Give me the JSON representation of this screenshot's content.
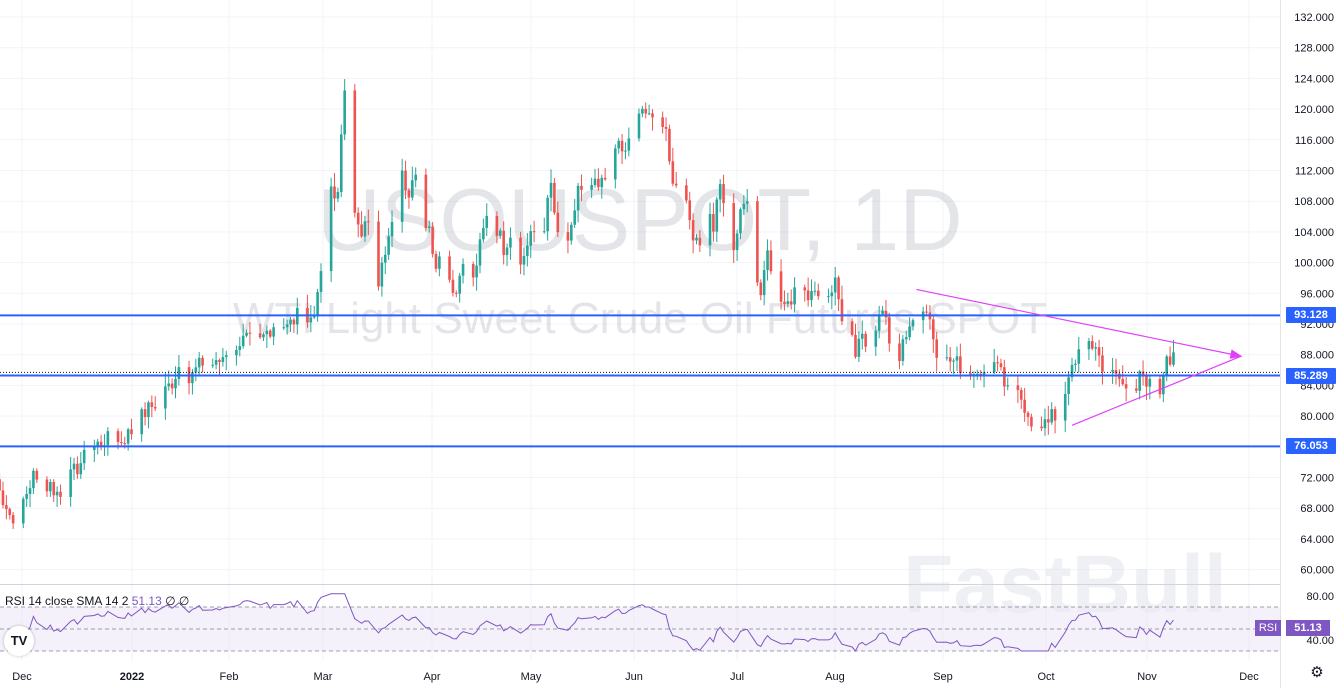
{
  "watermark": {
    "symbol": "USOUSPOT, 1D",
    "description": "WTI Light Sweet Crude Oil Futures SPOT",
    "brand": "FastBull"
  },
  "rsi_legend": {
    "label": "RSI 14 close SMA 14 2",
    "value": "51.13",
    "extra": "∅ ∅"
  },
  "rsi_tag": {
    "name": "RSI",
    "value": "51.13"
  },
  "price_tags": [
    "93.128",
    "85.289",
    "76.053"
  ],
  "colors": {
    "up": "#26a69a",
    "down": "#ef5350",
    "level": "#2962ff",
    "trend": "#e040fb",
    "rsi": "#7e57c2",
    "rsi_band": "#ede7f6"
  },
  "icons": {
    "logo": "tradingview-logo-icon",
    "settings": "gear-icon"
  },
  "chart_data": [
    {
      "type": "candlestick",
      "symbol": "USOUSPOT",
      "interval": "1D",
      "x_tick_labels": [
        "Dec",
        "2022",
        "Feb",
        "Mar",
        "Apr",
        "May",
        "Jun",
        "Jul",
        "Aug",
        "Sep",
        "Oct",
        "Nov",
        "Dec"
      ],
      "y_tick_labels": [
        "132.000",
        "128.000",
        "124.000",
        "120.000",
        "116.000",
        "112.000",
        "108.000",
        "104.000",
        "100.000",
        "96.000",
        "92.000",
        "88.000",
        "84.000",
        "80.000",
        "76.000",
        "72.000",
        "68.000",
        "64.000",
        "60.000"
      ],
      "ylim": [
        58.4,
        133.6
      ],
      "grid": true,
      "anchors": [
        {
          "day": -36,
          "price": 71.0
        },
        {
          "day": -33,
          "price": 68.5
        },
        {
          "day": -31,
          "price": 66.0
        },
        {
          "day": -28,
          "price": 69.0
        },
        {
          "day": -25,
          "price": 72.2
        },
        {
          "day": -23,
          "price": 70.5
        },
        {
          "day": -20,
          "price": 71.0
        },
        {
          "day": -17,
          "price": 69.5
        },
        {
          "day": -14,
          "price": 72.0
        },
        {
          "day": -11,
          "price": 74.0
        },
        {
          "day": -8,
          "price": 75.5
        },
        {
          "day": -4,
          "price": 77.0
        },
        {
          "day": 0,
          "price": 76.5
        },
        {
          "day": 4,
          "price": 78.0
        },
        {
          "day": 8,
          "price": 80.5
        },
        {
          "day": 12,
          "price": 82.0
        },
        {
          "day": 16,
          "price": 84.5
        },
        {
          "day": 18,
          "price": 86.5
        },
        {
          "day": 21,
          "price": 84.5
        },
        {
          "day": 23,
          "price": 86.0
        },
        {
          "day": 26,
          "price": 87.5
        },
        {
          "day": 29,
          "price": 86.5
        },
        {
          "day": 32,
          "price": 88.5
        },
        {
          "day": 35,
          "price": 89.5
        },
        {
          "day": 38,
          "price": 90.0
        },
        {
          "day": 41,
          "price": 89.0
        },
        {
          "day": 44,
          "price": 91.0
        },
        {
          "day": 47,
          "price": 92.5
        },
        {
          "day": 50,
          "price": 91.5
        },
        {
          "day": 53,
          "price": 93.0
        },
        {
          "day": 56,
          "price": 92.0
        },
        {
          "day": 59,
          "price": 95.0
        },
        {
          "day": 61,
          "price": 103.0
        },
        {
          "day": 63,
          "price": 110.0
        },
        {
          "day": 65,
          "price": 108.5
        },
        {
          "day": 67,
          "price": 123.0
        },
        {
          "day": 68,
          "price": 115.0
        },
        {
          "day": 70,
          "price": 106.0
        },
        {
          "day": 72,
          "price": 103.0
        },
        {
          "day": 74,
          "price": 106.0
        },
        {
          "day": 76,
          "price": 95.0
        },
        {
          "day": 78,
          "price": 101.0
        },
        {
          "day": 81,
          "price": 104.5
        },
        {
          "day": 84,
          "price": 112.0
        },
        {
          "day": 86,
          "price": 109.0
        },
        {
          "day": 88,
          "price": 112.5
        },
        {
          "day": 90,
          "price": 106.0
        },
        {
          "day": 92,
          "price": 104.0
        },
        {
          "day": 94,
          "price": 100.0
        },
        {
          "day": 96,
          "price": 104.0
        },
        {
          "day": 98,
          "price": 98.0
        },
        {
          "day": 100,
          "price": 96.0
        },
        {
          "day": 102,
          "price": 101.0
        },
        {
          "day": 104,
          "price": 95.0
        },
        {
          "day": 106,
          "price": 100.0
        },
        {
          "day": 108,
          "price": 104.0
        },
        {
          "day": 110,
          "price": 107.5
        },
        {
          "day": 112,
          "price": 104.5
        },
        {
          "day": 114,
          "price": 102.0
        },
        {
          "day": 116,
          "price": 104.0
        },
        {
          "day": 118,
          "price": 98.0
        },
        {
          "day": 120,
          "price": 101.0
        },
        {
          "day": 122,
          "price": 104.0
        },
        {
          "day": 124,
          "price": 102.0
        },
        {
          "day": 126,
          "price": 105.0
        },
        {
          "day": 128,
          "price": 110.0
        },
        {
          "day": 130,
          "price": 103.0
        },
        {
          "day": 132,
          "price": 99.5
        },
        {
          "day": 134,
          "price": 104.0
        },
        {
          "day": 136,
          "price": 110.0
        },
        {
          "day": 138,
          "price": 108.0
        },
        {
          "day": 140,
          "price": 110.0
        },
        {
          "day": 142,
          "price": 109.5
        },
        {
          "day": 144,
          "price": 111.0
        },
        {
          "day": 146,
          "price": 114.0
        },
        {
          "day": 148,
          "price": 115.5
        },
        {
          "day": 150,
          "price": 114.0
        },
        {
          "day": 152,
          "price": 117.0
        },
        {
          "day": 154,
          "price": 118.5
        },
        {
          "day": 156,
          "price": 120.5
        },
        {
          "day": 158,
          "price": 119.0
        },
        {
          "day": 160,
          "price": 120.0
        },
        {
          "day": 162,
          "price": 117.0
        },
        {
          "day": 164,
          "price": 111.0
        },
        {
          "day": 166,
          "price": 109.0
        },
        {
          "day": 168,
          "price": 107.0
        },
        {
          "day": 170,
          "price": 104.0
        },
        {
          "day": 172,
          "price": 103.0
        },
        {
          "day": 174,
          "price": 107.0
        },
        {
          "day": 176,
          "price": 104.5
        },
        {
          "day": 178,
          "price": 110.0
        },
        {
          "day": 180,
          "price": 106.0
        },
        {
          "day": 182,
          "price": 102.0
        },
        {
          "day": 184,
          "price": 106.0
        },
        {
          "day": 186,
          "price": 109.0
        },
        {
          "day": 188,
          "price": 100.0
        },
        {
          "day": 190,
          "price": 96.0
        },
        {
          "day": 192,
          "price": 102.0
        },
        {
          "day": 194,
          "price": 98.0
        },
        {
          "day": 196,
          "price": 95.0
        },
        {
          "day": 198,
          "price": 94.0
        },
        {
          "day": 200,
          "price": 97.0
        },
        {
          "day": 202,
          "price": 99.0
        },
        {
          "day": 204,
          "price": 96.0
        },
        {
          "day": 206,
          "price": 95.5
        },
        {
          "day": 208,
          "price": 98.0
        },
        {
          "day": 210,
          "price": 96.0
        },
        {
          "day": 212,
          "price": 97.5
        },
        {
          "day": 214,
          "price": 93.0
        },
        {
          "day": 216,
          "price": 91.0
        },
        {
          "day": 218,
          "price": 88.0
        },
        {
          "day": 220,
          "price": 90.0
        },
        {
          "day": 222,
          "price": 88.5
        },
        {
          "day": 224,
          "price": 92.0
        },
        {
          "day": 226,
          "price": 93.5
        },
        {
          "day": 228,
          "price": 90.0
        },
        {
          "day": 230,
          "price": 87.0
        },
        {
          "day": 232,
          "price": 89.0
        },
        {
          "day": 234,
          "price": 91.0
        },
        {
          "day": 236,
          "price": 93.0
        },
        {
          "day": 238,
          "price": 94.5
        },
        {
          "day": 240,
          "price": 91.5
        },
        {
          "day": 242,
          "price": 88.0
        },
        {
          "day": 244,
          "price": 87.0
        },
        {
          "day": 246,
          "price": 88.0
        },
        {
          "day": 248,
          "price": 87.0
        },
        {
          "day": 250,
          "price": 83.0
        },
        {
          "day": 252,
          "price": 85.0
        },
        {
          "day": 254,
          "price": 86.5
        },
        {
          "day": 256,
          "price": 86.0
        },
        {
          "day": 258,
          "price": 85.0
        },
        {
          "day": 260,
          "price": 87.0
        },
        {
          "day": 262,
          "price": 84.0
        },
        {
          "day": 264,
          "price": 86.0
        },
        {
          "day": 266,
          "price": 84.0
        },
        {
          "day": 268,
          "price": 81.5
        },
        {
          "day": 270,
          "price": 79.0
        },
        {
          "day": 272,
          "price": 76.8
        },
        {
          "day": 274,
          "price": 79.5
        },
        {
          "day": 276,
          "price": 81.0
        },
        {
          "day": 278,
          "price": 79.5
        },
        {
          "day": 280,
          "price": 83.5
        },
        {
          "day": 282,
          "price": 86.5
        },
        {
          "day": 284,
          "price": 88.5
        },
        {
          "day": 286,
          "price": 91.5
        },
        {
          "day": 288,
          "price": 90.0
        },
        {
          "day": 290,
          "price": 88.0
        },
        {
          "day": 292,
          "price": 86.0
        },
        {
          "day": 294,
          "price": 87.0
        },
        {
          "day": 296,
          "price": 85.0
        },
        {
          "day": 298,
          "price": 82.5
        },
        {
          "day": 300,
          "price": 84.0
        },
        {
          "day": 302,
          "price": 85.0
        },
        {
          "day": 304,
          "price": 83.0
        },
        {
          "day": 306,
          "price": 85.5
        },
        {
          "day": 308,
          "price": 84.0
        },
        {
          "day": 310,
          "price": 87.5
        },
        {
          "day": 312,
          "price": 88.0
        },
        {
          "day": 314,
          "price": 86.5
        }
      ],
      "price_levels": [
        93.128,
        85.289,
        76.053
      ],
      "dotted_level": 85.7,
      "triangle_upper": [
        {
          "day": 236,
          "price": 96.5
        },
        {
          "day": 332,
          "price": 87.8
        }
      ],
      "triangle_lower": [
        {
          "day": 282,
          "price": 78.8
        },
        {
          "day": 332,
          "price": 87.8
        }
      ]
    },
    {
      "type": "line",
      "name": "RSI",
      "y_tick_labels": [
        "80.00",
        "40.00"
      ],
      "ylim": [
        32,
        88
      ],
      "band": [
        70,
        30
      ],
      "mid": 50,
      "last": 51.13
    }
  ]
}
